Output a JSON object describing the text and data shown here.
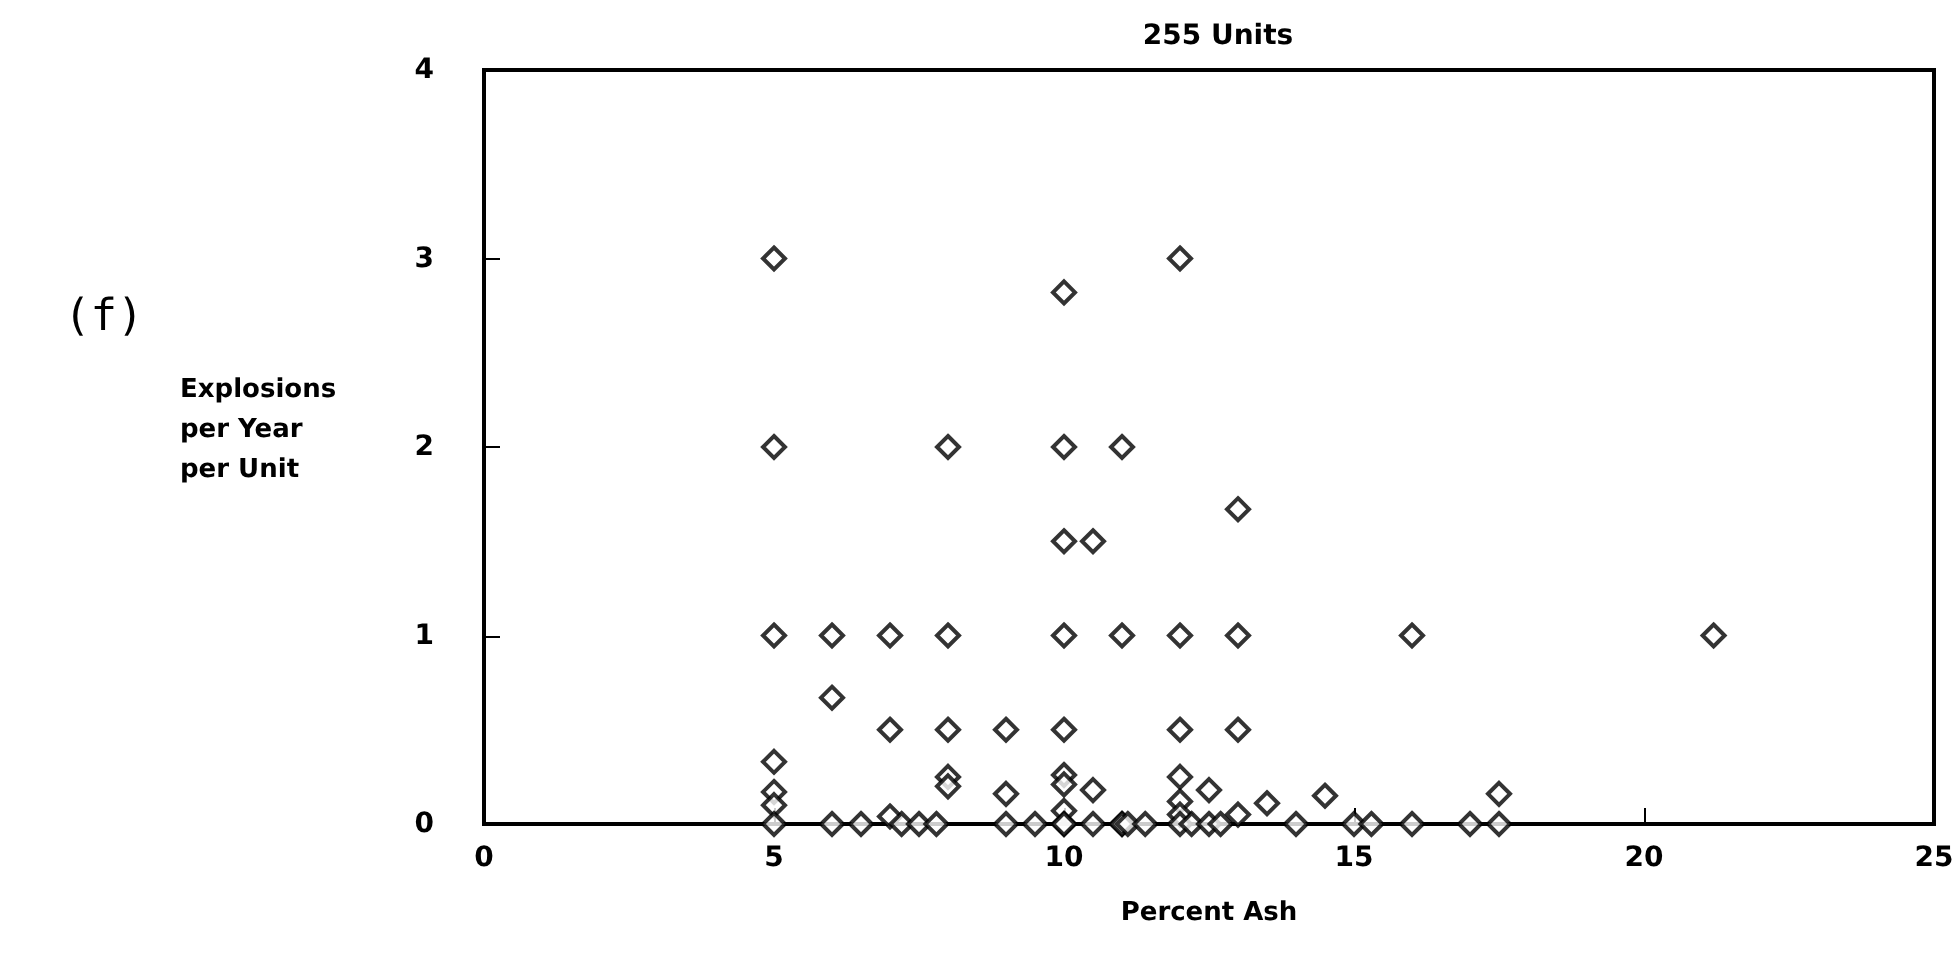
{
  "chart_data": {
    "type": "scatter",
    "title": "255 Units",
    "xlabel": "Percent Ash",
    "ylabel": "Explosions per Year per Unit",
    "annotations": [
      "(f)"
    ],
    "x": [
      5,
      5,
      5,
      5,
      5,
      5,
      5,
      6,
      6,
      6,
      7,
      7,
      7,
      8,
      8,
      8,
      8,
      8,
      9,
      9,
      9,
      10,
      10,
      10,
      10,
      10,
      10,
      10,
      10,
      10,
      10,
      10.5,
      10.5,
      11,
      11,
      11,
      12,
      12,
      12,
      12,
      12,
      12,
      12,
      12.5,
      13,
      13,
      13,
      13,
      13.5,
      14.5,
      16,
      17.5,
      21.2,
      6.5,
      7.2,
      7.5,
      7.8,
      9.5,
      10.5,
      11,
      11.1,
      11.4,
      12.2,
      12.5,
      12.7,
      14,
      15,
      15.3,
      16,
      17,
      17.5
    ],
    "series": [
      {
        "color": "#000000",
        "values": [
          3,
          2,
          1,
          0.33,
          0.17,
          0.1,
          0,
          1,
          0.67,
          0,
          1,
          0.5,
          0.04,
          2,
          1,
          0.5,
          0.25,
          0.2,
          0.5,
          0.16,
          0,
          2.82,
          2,
          1.5,
          1,
          0.5,
          0.26,
          0.21,
          0.07,
          0,
          0,
          1.5,
          0.18,
          2,
          1,
          0,
          3,
          1,
          0.5,
          0.25,
          0.12,
          0.05,
          0,
          0.18,
          1.67,
          1,
          0.5,
          0.05,
          0.11,
          0.15,
          1,
          0.16,
          1,
          0,
          0,
          0,
          0,
          0,
          0,
          0,
          0,
          0,
          0,
          0,
          0,
          0,
          0,
          0,
          0,
          0,
          0
        ]
      }
    ],
    "xlim": [
      0,
      25
    ],
    "xticks": [
      0,
      5,
      10,
      15,
      20,
      25
    ],
    "ylim": [
      0,
      4
    ],
    "yticks": [
      0,
      1,
      2,
      3,
      4
    ],
    "grid": false,
    "marker": "diamond"
  }
}
